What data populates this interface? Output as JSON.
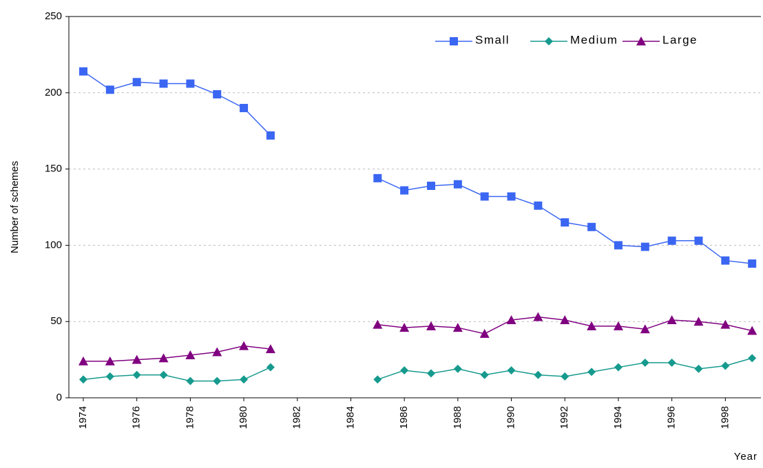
{
  "chart_data": {
    "type": "line",
    "x_label": "Year",
    "y_label": "Number of schemes",
    "x": [
      1974,
      1975,
      1976,
      1977,
      1978,
      1979,
      1980,
      1981,
      1982,
      1983,
      1984,
      1985,
      1986,
      1987,
      1988,
      1989,
      1990,
      1991,
      1992,
      1993,
      1994,
      1995,
      1996,
      1997,
      1998,
      1999
    ],
    "xlim": [
      1973.46,
      1999.33
    ],
    "xticks": [
      1974,
      1976,
      1978,
      1980,
      1982,
      1984,
      1986,
      1988,
      1990,
      1992,
      1994,
      1996,
      1998
    ],
    "ylim": [
      0,
      250
    ],
    "yticks": [
      0,
      50,
      100,
      150,
      200,
      250
    ],
    "grid": true,
    "legend": "top-right",
    "series": [
      {
        "name": "Small",
        "color": "#3a66f2",
        "marker": "square",
        "values": [
          214,
          202,
          207,
          206,
          206,
          199,
          190,
          172,
          null,
          null,
          null,
          144,
          136,
          139,
          140,
          132,
          132,
          126,
          115,
          112,
          100,
          99,
          103,
          103,
          90,
          88
        ]
      },
      {
        "name": "Medium",
        "color": "#169a8e",
        "marker": "diamond",
        "values": [
          12,
          14,
          15,
          15,
          11,
          11,
          12,
          20,
          null,
          null,
          null,
          12,
          18,
          16,
          19,
          15,
          18,
          15,
          14,
          17,
          20,
          23,
          23,
          19,
          21,
          26
        ]
      },
      {
        "name": "Large",
        "color": "#800080",
        "marker": "triangle",
        "values": [
          24,
          24,
          25,
          26,
          28,
          30,
          34,
          32,
          null,
          null,
          null,
          48,
          46,
          47,
          46,
          42,
          51,
          53,
          51,
          47,
          47,
          45,
          51,
          50,
          48,
          44
        ]
      }
    ]
  }
}
